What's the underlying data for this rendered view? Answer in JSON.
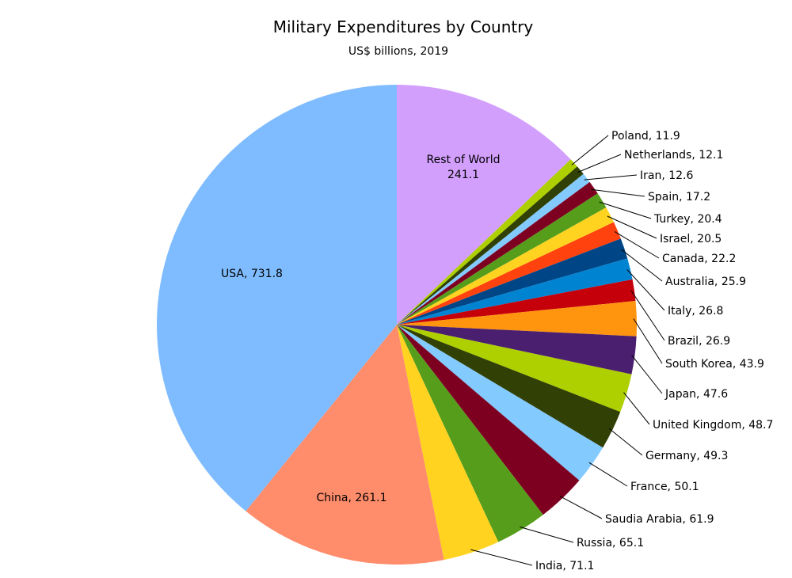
{
  "chart_data": {
    "type": "pie",
    "title": "Military Expenditures by Country",
    "subtitle": "US$ billions, 2019",
    "slices": [
      {
        "label": "Rest of World",
        "value": 241.1,
        "color": "#d39ffd",
        "text_line1": "Rest of World",
        "text_line2": "241.1"
      },
      {
        "label": "Poland",
        "value": 11.9,
        "color": "#aecf00",
        "text": "Poland, 11.9"
      },
      {
        "label": "Netherlands",
        "value": 12.1,
        "color": "#314004",
        "text": "Netherlands, 12.1"
      },
      {
        "label": "Iran",
        "value": 12.6,
        "color": "#83caff",
        "text": "Iran, 12.6"
      },
      {
        "label": "Spain",
        "value": 17.2,
        "color": "#7e0021",
        "text": "Spain, 17.2"
      },
      {
        "label": "Turkey",
        "value": 20.4,
        "color": "#579d1c",
        "text": "Turkey, 20.4"
      },
      {
        "label": "Israel",
        "value": 20.5,
        "color": "#ffd320",
        "text": "Israel, 20.5"
      },
      {
        "label": "Canada",
        "value": 22.2,
        "color": "#ff420e",
        "text": "Canada, 22.2"
      },
      {
        "label": "Australia",
        "value": 25.9,
        "color": "#004586",
        "text": "Australia, 25.9"
      },
      {
        "label": "Italy",
        "value": 26.8,
        "color": "#0084d1",
        "text": "Italy, 26.8"
      },
      {
        "label": "Brazil",
        "value": 26.9,
        "color": "#c5000b",
        "text": "Brazil, 26.9"
      },
      {
        "label": "South Korea",
        "value": 43.9,
        "color": "#ff950e",
        "text": "South Korea, 43.9"
      },
      {
        "label": "Japan",
        "value": 47.6,
        "color": "#4b1f6f",
        "text": "Japan, 47.6"
      },
      {
        "label": "United Kingdom",
        "value": 48.7,
        "color": "#aecf00",
        "text": "United Kingdom, 48.7"
      },
      {
        "label": "Germany",
        "value": 49.3,
        "color": "#314004",
        "text": "Germany, 49.3"
      },
      {
        "label": "France",
        "value": 50.1,
        "color": "#83caff",
        "text": "France, 50.1"
      },
      {
        "label": "Saudia Arabia",
        "value": 61.9,
        "color": "#7e0021",
        "text": "Saudia Arabia, 61.9"
      },
      {
        "label": "Russia",
        "value": 65.1,
        "color": "#579d1c",
        "text": "Russia, 65.1"
      },
      {
        "label": "India",
        "value": 71.1,
        "color": "#ffd320",
        "text": "India, 71.1"
      },
      {
        "label": "China",
        "value": 261.1,
        "color": "#ff8c6b",
        "text": "China, 261.1"
      },
      {
        "label": "USA",
        "value": 731.8,
        "color": "#7fbcff",
        "text": "USA, 731.8"
      }
    ]
  }
}
